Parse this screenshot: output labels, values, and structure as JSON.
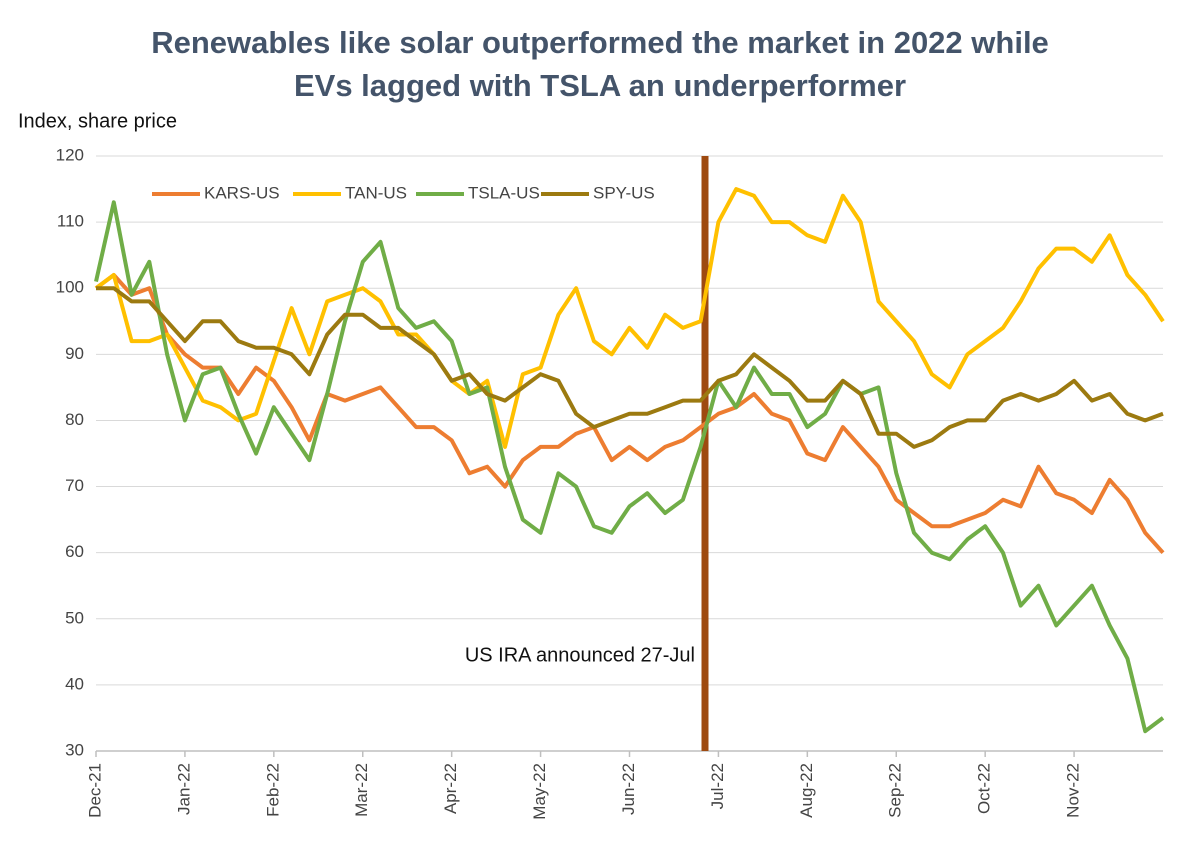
{
  "chart_data": {
    "type": "line",
    "title": [
      "Renewables like solar outperformed the market in 2022 while",
      "EVs lagged with TSLA an underperformer"
    ],
    "y_label": "Index, share price",
    "annotation": "US IRA announced 27-Jul",
    "legend": "top",
    "grid": true,
    "ylim": [
      30,
      120
    ],
    "yticks": [
      30,
      40,
      50,
      60,
      70,
      80,
      90,
      100,
      110,
      120
    ],
    "categories": [
      "Dec-21",
      null,
      null,
      null,
      null,
      "Jan-22",
      null,
      null,
      null,
      null,
      "Feb-22",
      null,
      null,
      null,
      null,
      "Mar-22",
      null,
      null,
      null,
      null,
      "Apr-22",
      null,
      null,
      null,
      null,
      "May-22",
      null,
      null,
      null,
      null,
      "Jun-22",
      null,
      null,
      null,
      null,
      "Jul-22",
      null,
      null,
      null,
      null,
      "Aug-22",
      null,
      null,
      null,
      null,
      "Sep-22",
      null,
      null,
      null,
      null,
      "Oct-22",
      null,
      null,
      null,
      null,
      "Nov-22",
      null,
      null,
      null,
      null,
      null
    ],
    "series": [
      {
        "name": "KARS-US",
        "color": "#ed7d31",
        "values": [
          100,
          102,
          99,
          100,
          93,
          90,
          88,
          88,
          84,
          88,
          86,
          82,
          77,
          84,
          83,
          84,
          85,
          82,
          79,
          79,
          77,
          72,
          73,
          70,
          74,
          76,
          76,
          78,
          79,
          74,
          76,
          74,
          76,
          77,
          79,
          81,
          82,
          84,
          81,
          80,
          75,
          74,
          79,
          76,
          73,
          68,
          66,
          64,
          64,
          65,
          66,
          68,
          67,
          73,
          69,
          68,
          66,
          71,
          68,
          63,
          60
        ]
      },
      {
        "name": "TAN-US",
        "color": "#ffc000",
        "values": [
          100,
          102,
          92,
          92,
          93,
          88,
          83,
          82,
          80,
          81,
          89,
          97,
          90,
          98,
          99,
          100,
          98,
          93,
          93,
          90,
          86,
          84,
          86,
          76,
          87,
          88,
          96,
          100,
          92,
          90,
          94,
          91,
          96,
          94,
          95,
          110,
          115,
          114,
          110,
          110,
          108,
          107,
          114,
          110,
          98,
          95,
          92,
          87,
          85,
          90,
          92,
          94,
          98,
          103,
          106,
          106,
          104,
          108,
          102,
          99,
          95
        ]
      },
      {
        "name": "TSLA-US",
        "color": "#70ad47",
        "values": [
          101,
          113,
          99,
          104,
          90,
          80,
          87,
          88,
          81,
          75,
          82,
          78,
          74,
          84,
          95,
          104,
          107,
          97,
          94,
          95,
          92,
          84,
          85,
          73,
          65,
          63,
          72,
          70,
          64,
          63,
          67,
          69,
          66,
          68,
          76,
          86,
          82,
          88,
          84,
          84,
          79,
          81,
          86,
          84,
          85,
          72,
          63,
          60,
          59,
          62,
          64,
          60,
          52,
          55,
          49,
          52,
          55,
          49,
          44,
          33,
          35
        ]
      },
      {
        "name": "SPY-US",
        "color": "#9c7a10",
        "values": [
          100,
          100,
          98,
          98,
          95,
          92,
          95,
          95,
          92,
          91,
          91,
          90,
          87,
          93,
          96,
          96,
          94,
          94,
          92,
          90,
          86,
          87,
          84,
          83,
          85,
          87,
          86,
          81,
          79,
          80,
          81,
          81,
          82,
          83,
          83,
          86,
          87,
          90,
          88,
          86,
          83,
          83,
          86,
          84,
          78,
          78,
          76,
          77,
          79,
          80,
          80,
          83,
          84,
          83,
          84,
          86,
          83,
          84,
          81,
          80,
          81
        ]
      }
    ]
  }
}
